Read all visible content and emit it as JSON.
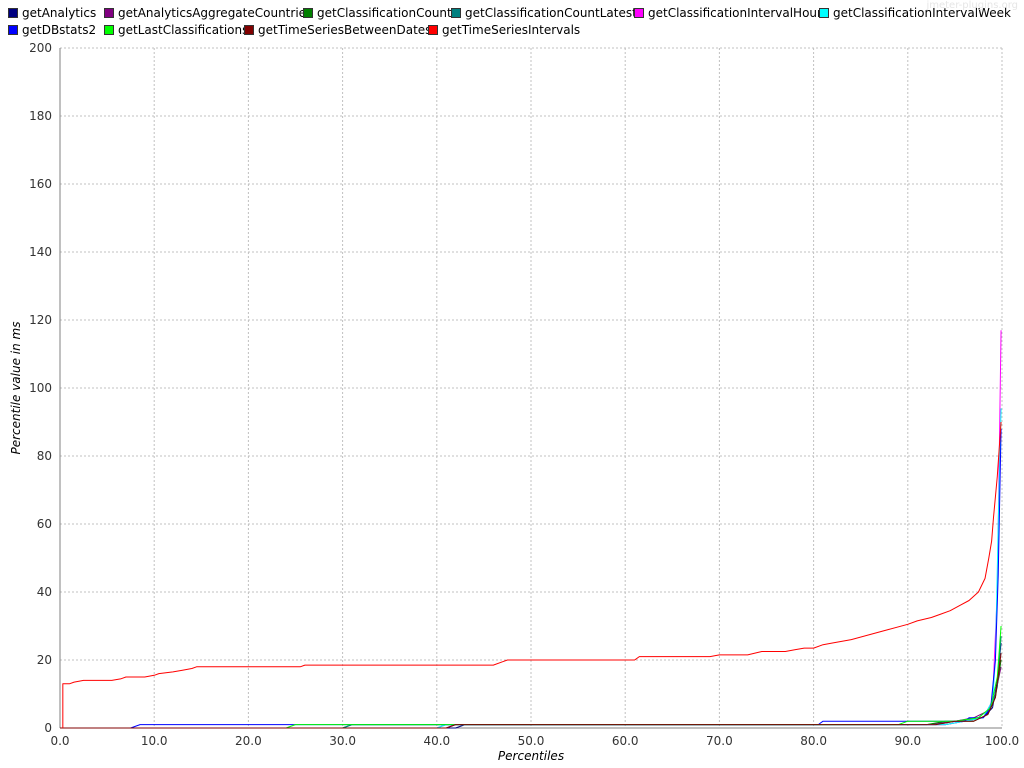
{
  "watermark": "jmeter-plugins.org",
  "chart_data": {
    "type": "line",
    "xlabel": "Percentiles",
    "ylabel": "Percentile value in ms",
    "xlim": [
      0,
      100
    ],
    "ylim": [
      0,
      200
    ],
    "x_ticks": [
      "0.0",
      "10.0",
      "20.0",
      "30.0",
      "40.0",
      "50.0",
      "60.0",
      "70.0",
      "80.0",
      "90.0",
      "100.0"
    ],
    "y_ticks": [
      "0",
      "20",
      "40",
      "60",
      "80",
      "100",
      "120",
      "140",
      "160",
      "180",
      "200"
    ],
    "grid": true,
    "legend_position": "top",
    "series": [
      {
        "name": "getAnalytics",
        "color": "#000080",
        "points": [
          [
            0,
            0
          ],
          [
            42,
            0
          ],
          [
            43,
            1
          ],
          [
            90,
            1
          ],
          [
            92,
            1
          ],
          [
            94,
            1
          ],
          [
            96,
            2
          ],
          [
            98,
            3
          ],
          [
            99,
            6
          ],
          [
            99.5,
            14
          ],
          [
            99.9,
            25
          ]
        ]
      },
      {
        "name": "getAnalyticsAggregateCountries",
        "color": "#800080",
        "points": [
          [
            0,
            0
          ],
          [
            41,
            0
          ],
          [
            42,
            1
          ],
          [
            92,
            1
          ],
          [
            95,
            2
          ],
          [
            97,
            3
          ],
          [
            98.5,
            5
          ],
          [
            99.3,
            10
          ],
          [
            99.9,
            18
          ]
        ]
      },
      {
        "name": "getClassificationCount",
        "color": "#008000",
        "points": [
          [
            0,
            0
          ],
          [
            30,
            0
          ],
          [
            31,
            1
          ],
          [
            92,
            1
          ],
          [
            94,
            2
          ],
          [
            97,
            2
          ],
          [
            98.5,
            4
          ],
          [
            99.3,
            9
          ],
          [
            99.9,
            20
          ]
        ]
      },
      {
        "name": "getClassificationCountLatest",
        "color": "#008080",
        "points": [
          [
            0,
            0
          ],
          [
            30,
            0
          ],
          [
            31,
            1
          ],
          [
            93,
            1
          ],
          [
            95,
            2
          ],
          [
            97.5,
            3
          ],
          [
            98.8,
            6
          ],
          [
            99.5,
            12
          ],
          [
            99.9,
            27
          ]
        ]
      },
      {
        "name": "getClassificationIntervalHour",
        "color": "#ff00ff",
        "points": [
          [
            0,
            0
          ],
          [
            40,
            0
          ],
          [
            41,
            1
          ],
          [
            94,
            1
          ],
          [
            96,
            2
          ],
          [
            98,
            3
          ],
          [
            99,
            8
          ],
          [
            99.5,
            40
          ],
          [
            99.9,
            117
          ]
        ]
      },
      {
        "name": "getClassificationIntervalWeek",
        "color": "#00ffff",
        "points": [
          [
            0,
            0
          ],
          [
            40,
            0
          ],
          [
            41,
            1
          ],
          [
            94,
            1
          ],
          [
            96,
            2
          ],
          [
            98,
            3
          ],
          [
            99,
            8
          ],
          [
            99.3,
            20
          ],
          [
            99.6,
            60
          ],
          [
            99.9,
            94
          ]
        ]
      },
      {
        "name": "getDBstats2",
        "color": "#0000ff",
        "points": [
          [
            0,
            0
          ],
          [
            7.5,
            0
          ],
          [
            8.5,
            1
          ],
          [
            80.5,
            1
          ],
          [
            81,
            2
          ],
          [
            96,
            2
          ],
          [
            96.5,
            3
          ],
          [
            98,
            3
          ],
          [
            98.8,
            6
          ],
          [
            99.3,
            20
          ],
          [
            99.6,
            45
          ],
          [
            99.9,
            88
          ]
        ]
      },
      {
        "name": "getLastClassifications",
        "color": "#00ff00",
        "points": [
          [
            0,
            0
          ],
          [
            24,
            0
          ],
          [
            25,
            1
          ],
          [
            89,
            1
          ],
          [
            90,
            2
          ],
          [
            92,
            2
          ],
          [
            95,
            2
          ],
          [
            97.5,
            3
          ],
          [
            98.8,
            6
          ],
          [
            99.5,
            15
          ],
          [
            99.9,
            30
          ]
        ]
      },
      {
        "name": "getTimeSeriesBetweenDates",
        "color": "#800000",
        "points": [
          [
            0,
            0
          ],
          [
            41,
            0
          ],
          [
            42,
            1
          ],
          [
            93,
            1
          ],
          [
            95,
            2
          ],
          [
            97,
            2
          ],
          [
            98.5,
            4
          ],
          [
            99.3,
            9
          ],
          [
            99.9,
            22
          ]
        ]
      },
      {
        "name": "getTimeSeriesIntervals",
        "color": "#ff0000",
        "points": [
          [
            0.3,
            0
          ],
          [
            0.3,
            13
          ],
          [
            1,
            13
          ],
          [
            1.5,
            13.5
          ],
          [
            2.5,
            14
          ],
          [
            5.5,
            14
          ],
          [
            6.5,
            14.5
          ],
          [
            7,
            15
          ],
          [
            9,
            15
          ],
          [
            10,
            15.5
          ],
          [
            10.5,
            16
          ],
          [
            12,
            16.5
          ],
          [
            13,
            17
          ],
          [
            14,
            17.5
          ],
          [
            14.5,
            18
          ],
          [
            25.5,
            18
          ],
          [
            26,
            18.5
          ],
          [
            46,
            18.5
          ],
          [
            47,
            19.5
          ],
          [
            47.5,
            20
          ],
          [
            61,
            20
          ],
          [
            61.5,
            21
          ],
          [
            69,
            21
          ],
          [
            70,
            21.5
          ],
          [
            73,
            21.5
          ],
          [
            74.5,
            22.5
          ],
          [
            77,
            22.5
          ],
          [
            78,
            23
          ],
          [
            79,
            23.5
          ],
          [
            80,
            23.5
          ],
          [
            81,
            24.5
          ],
          [
            82,
            25
          ],
          [
            84,
            26
          ],
          [
            86,
            27.5
          ],
          [
            88,
            29
          ],
          [
            90,
            30.5
          ],
          [
            91,
            31.5
          ],
          [
            92.5,
            32.5
          ],
          [
            93.5,
            33.5
          ],
          [
            94.5,
            34.5
          ],
          [
            95.5,
            36
          ],
          [
            96.5,
            37.5
          ],
          [
            97.5,
            40
          ],
          [
            98.2,
            44
          ],
          [
            98.6,
            50
          ],
          [
            98.9,
            55
          ],
          [
            99.1,
            62
          ],
          [
            99.3,
            68
          ],
          [
            99.5,
            74
          ],
          [
            99.7,
            82
          ],
          [
            99.9,
            90
          ]
        ]
      }
    ]
  }
}
